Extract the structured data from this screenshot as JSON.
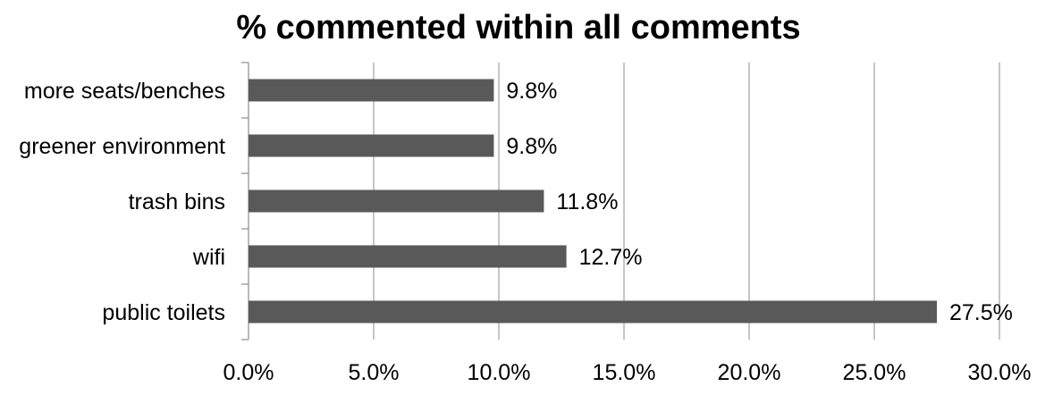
{
  "chart_data": {
    "type": "bar",
    "orientation": "horizontal",
    "title": "% commented within all comments",
    "xlabel": "",
    "ylabel": "",
    "categories": [
      "more seats/benches",
      "greener environment",
      "trash bins",
      "wifi",
      "public toilets"
    ],
    "values": [
      9.8,
      9.8,
      11.8,
      12.7,
      27.5
    ],
    "data_labels": [
      "9.8%",
      "9.8%",
      "11.8%",
      "12.7%",
      "27.5%"
    ],
    "xlim": [
      0,
      30
    ],
    "xticks": [
      0,
      5,
      10,
      15,
      20,
      25,
      30
    ],
    "xtick_labels": [
      "0.0%",
      "5.0%",
      "10.0%",
      "15.0%",
      "20.0%",
      "25.0%",
      "30.0%"
    ],
    "grid": "vertical",
    "legend": "none",
    "bar_color": "#595959",
    "grid_color": "#8c8c8c"
  }
}
